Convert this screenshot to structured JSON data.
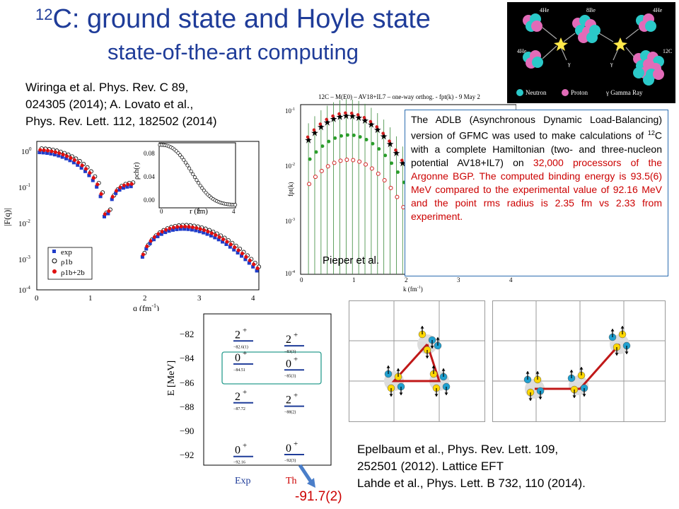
{
  "title": {
    "mass": "12",
    "text": "C: ground state and Hoyle state"
  },
  "subtitle": "state-of-the-art computing",
  "refs": {
    "wiringa": [
      "Wiringa et al.  Phys. Rev. C 89,",
      "024305 (2014); A. Lovato et al.,",
      "Phys. Rev. Lett. 112, 182502 (2014)"
    ],
    "epelbaum": [
      "Epelbaum et al., Phys. Rev. Lett. 109,",
      "252501 (2012). Lattice EFT",
      "Lahde et al., Phys. Lett. B 732, 110 (2014)."
    ]
  },
  "gfmc_box": {
    "p1": "The ADLB (Asynchronous Dynamic Load-Balancing) version of GFMC was used to make calculations of ",
    "p1_sup": "12",
    "p2": "C with a complete Hamiltonian (two- and three-nucleon potential AV18+IL7) on ",
    "processors": "32,000 processors of the Argonne BGP.",
    "red_sentence": " The computed binding energy is 93.5(6) MeV compared to the experimental value of 92.16 MeV and the point rms radius is 2.35 fm vs 2.33 from experiment."
  },
  "pieper_label": "Pieper et al.",
  "fusion_legend": {
    "neutron": "Neutron",
    "proton": "Proton",
    "gamma": "γ Gamma Ray",
    "he4a": "4He",
    "be8": "8Be",
    "he4b": "4He",
    "he4c": "4He",
    "c12": "12C"
  },
  "formfactor_chart": {
    "ylabel": "|F(q)|",
    "xlabel": "q (fm",
    "xlabel_sup": "-1",
    "yticks": [
      "10",
      "10",
      "10",
      "10",
      "10"
    ],
    "yticks_exp": [
      "0",
      "-1",
      "-2",
      "-3",
      "-4"
    ],
    "xticks": [
      "0",
      "1",
      "2",
      "3",
      "4"
    ],
    "legend": [
      "exp",
      "ρ1b",
      "ρ1b+2b"
    ],
    "inset_ylabel": "ρch(r)",
    "inset_xlabel": "r (fm)",
    "inset_yticks": [
      "0.08",
      "0.04",
      "0.00"
    ],
    "inset_xticks": [
      "0",
      "2",
      "4"
    ]
  },
  "gfmc_chart": {
    "header": "12C – M(E0) – AV18+IL7 – one-way orthog. - fpt(k) - 9 May 2",
    "ylabel": "fpt(k)",
    "xlabel": "k (fm",
    "xticks": [
      "0",
      "1",
      "2",
      "3",
      "4"
    ],
    "yticks": [
      "10",
      "10",
      "10",
      "10"
    ],
    "yticks_exp": [
      "-1",
      "-2",
      "-3",
      "-4"
    ]
  },
  "spectrum_chart": {
    "ylabel": "E [MeV]",
    "yticks": [
      "−82",
      "−84",
      "−86",
      "−88",
      "−90",
      "−92"
    ],
    "exp_label": "Exp",
    "th_label": "Th",
    "exp_levels": [
      {
        "jp": "2",
        "sup": "+",
        "value": "−82.6(1)"
      },
      {
        "jp": "0",
        "sup": "+",
        "value": "−84.51"
      },
      {
        "jp": "2",
        "sup": "+",
        "value": "−87.72"
      },
      {
        "jp": "0",
        "sup": "+",
        "value": "−92.16"
      }
    ],
    "th_levels": [
      {
        "jp": "2",
        "sup": "+",
        "value": "−83(3)"
      },
      {
        "jp": "0",
        "sup": "+",
        "value": "−85(3)"
      },
      {
        "jp": "2",
        "sup": "+",
        "value": "−88(2)"
      },
      {
        "jp": "0",
        "sup": "+",
        "value": "−92(3)"
      }
    ],
    "annotation": "-91.7(2)"
  }
}
